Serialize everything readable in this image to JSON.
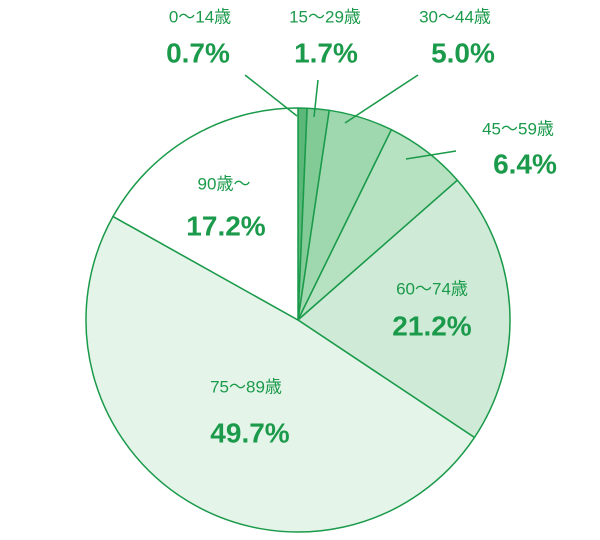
{
  "chart_data": {
    "type": "pie",
    "categories": [
      "0～14歳",
      "15～29歳",
      "30～44歳",
      "45～59歳",
      "60～74歳",
      "75～89歳",
      "90歳～"
    ],
    "values": [
      0.7,
      1.7,
      5.0,
      6.4,
      21.2,
      49.7,
      17.2
    ],
    "value_labels": [
      "0.7%",
      "1.7%",
      "5.0%",
      "6.4%",
      "21.2%",
      "49.7%",
      "17.2%"
    ],
    "colors": [
      "#5cb878",
      "#82cb97",
      "#9fd8ae",
      "#b6e2c2",
      "#cfebd7",
      "#e5f4e9",
      "#ffffff"
    ]
  }
}
